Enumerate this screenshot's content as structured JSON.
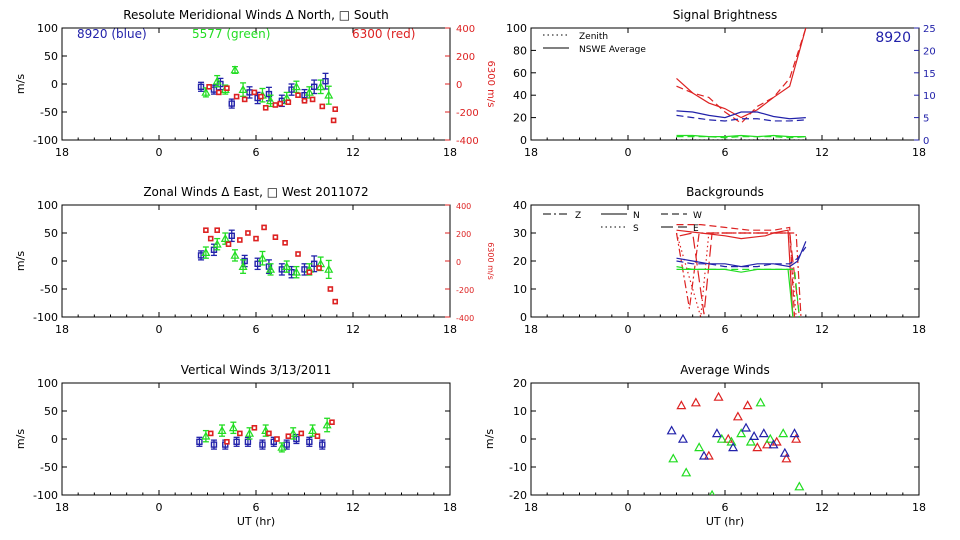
{
  "chart_data": [
    {
      "type": "scatter",
      "title": "Resolute Meridional Winds Δ North, □ South",
      "xlabel": "",
      "ylabel": "m/s",
      "y2label": "6300 m/s",
      "xlim": [
        18,
        42
      ],
      "xtick_labels": [
        "18",
        "0",
        "6",
        "12",
        "18"
      ],
      "ylim": [
        -100,
        100
      ],
      "yticks": [
        -100,
        -50,
        0,
        50,
        100
      ],
      "y2lim": [
        -400,
        400
      ],
      "y2ticks": [
        -400,
        -200,
        0,
        200,
        400
      ],
      "annotations": [
        {
          "text": "8920 (blue)",
          "color": "#2222aa"
        },
        {
          "text": "5577 (green)",
          "color": "#22dd22"
        },
        {
          "text": "6300 (red)",
          "color": "#dd2222"
        }
      ],
      "series": [
        {
          "color": "#2222aa",
          "marker": "square-err",
          "x": [
            26.6,
            27.4,
            27.8,
            28.5,
            29.6,
            30.1,
            30.8,
            31.6,
            32.2,
            33.0,
            33.6,
            34.3
          ],
          "y": [
            -5,
            -10,
            0,
            -35,
            -15,
            -25,
            -18,
            -30,
            -10,
            -20,
            -5,
            5
          ],
          "err": [
            8,
            8,
            10,
            8,
            10,
            10,
            12,
            10,
            10,
            10,
            12,
            14
          ]
        },
        {
          "color": "#22dd22",
          "marker": "triangle-err",
          "x": [
            26.9,
            27.6,
            28.1,
            28.7,
            29.2,
            30.4,
            30.9,
            31.9,
            32.5,
            33.3,
            34.0,
            34.5
          ],
          "y": [
            -15,
            5,
            -10,
            25,
            -10,
            -20,
            -30,
            -25,
            -5,
            -15,
            -5,
            -20
          ],
          "err": [
            8,
            10,
            8,
            6,
            12,
            12,
            10,
            10,
            10,
            10,
            12,
            16
          ]
        },
        {
          "color": "#dd2222",
          "marker": "square-red",
          "axis": "y2",
          "x": [
            27.1,
            27.7,
            28.2,
            28.8,
            29.3,
            29.9,
            30.3,
            30.6,
            31.2,
            31.5,
            32.0,
            32.6,
            33.0,
            33.5,
            34.1,
            34.8,
            34.9
          ],
          "y": [
            -20,
            -60,
            -30,
            -90,
            -110,
            -60,
            -90,
            -170,
            -150,
            -140,
            -130,
            -80,
            -120,
            -110,
            -160,
            -260,
            -180
          ]
        }
      ]
    },
    {
      "type": "line",
      "title": "Signal Brightness",
      "xlim": [
        18,
        42
      ],
      "xtick_labels": [
        "18",
        "0",
        "6",
        "12",
        "18"
      ],
      "ylim": [
        0,
        100
      ],
      "yticks": [
        0,
        20,
        40,
        60,
        80,
        100
      ],
      "y2lim": [
        0,
        25
      ],
      "y2ticks": [
        0,
        5,
        10,
        15,
        20,
        25
      ],
      "legend": {
        "placement": "top-left",
        "entries": [
          "Zenith",
          "NSWE Average"
        ]
      },
      "annotation": "8920",
      "series": [
        {
          "name": "Zenith",
          "color": "#000000",
          "style": "dotted",
          "x": [
            27,
            28,
            29,
            30,
            31,
            32,
            33,
            34,
            35
          ],
          "y": [
            0,
            0,
            0,
            0,
            0,
            0,
            0,
            0,
            0
          ]
        },
        {
          "color": "#dd2222",
          "style": "solid",
          "x": [
            27,
            28,
            29,
            30,
            31,
            32,
            33,
            34,
            35
          ],
          "y": [
            55,
            42,
            33,
            28,
            20,
            27,
            38,
            48,
            100
          ]
        },
        {
          "color": "#dd2222",
          "style": "dashed",
          "x": [
            27,
            28,
            29,
            30,
            31,
            32,
            33,
            34,
            35
          ],
          "y": [
            48,
            42,
            38,
            25,
            15,
            30,
            38,
            55,
            100
          ]
        },
        {
          "color": "#2222aa",
          "style": "solid",
          "x": [
            27,
            28,
            29,
            30,
            31,
            32,
            33,
            34,
            35
          ],
          "y": [
            26,
            25,
            22,
            20,
            25,
            25,
            21,
            19,
            20
          ]
        },
        {
          "color": "#2222aa",
          "style": "dashed",
          "x": [
            27,
            28,
            29,
            30,
            31,
            32,
            33,
            34,
            35
          ],
          "y": [
            22,
            20,
            18,
            17,
            19,
            19,
            17,
            17,
            18
          ]
        },
        {
          "color": "#22dd22",
          "style": "solid",
          "x": [
            27,
            28,
            29,
            30,
            31,
            32,
            33,
            34,
            35
          ],
          "y": [
            4,
            4,
            3,
            3,
            4,
            3,
            4,
            3,
            3
          ]
        },
        {
          "color": "#22dd22",
          "style": "dashed",
          "x": [
            27,
            28,
            29,
            30,
            31,
            32,
            33,
            34,
            35
          ],
          "y": [
            3,
            3,
            3,
            2,
            3,
            3,
            3,
            2,
            3
          ]
        }
      ]
    },
    {
      "type": "scatter",
      "title": "Zonal Winds Δ East, □ West 2011072",
      "xlabel": "",
      "ylabel": "m/s",
      "y2label": "6300 m/s",
      "xlim": [
        18,
        42
      ],
      "xtick_labels": [
        "18",
        "0",
        "6",
        "12",
        "18"
      ],
      "ylim": [
        -100,
        100
      ],
      "yticks": [
        -100,
        -50,
        0,
        50,
        100
      ],
      "y2lim": [
        -400,
        400
      ],
      "y2ticks": [
        -400,
        -200,
        0,
        200,
        400
      ],
      "series": [
        {
          "color": "#2222aa",
          "marker": "square-err",
          "x": [
            26.6,
            27.4,
            28.5,
            29.3,
            30.1,
            30.8,
            31.6,
            32.2,
            33.0,
            33.6
          ],
          "y": [
            10,
            20,
            45,
            0,
            -5,
            -10,
            -15,
            -20,
            -15,
            -5
          ],
          "err": [
            8,
            10,
            10,
            10,
            10,
            12,
            10,
            10,
            10,
            14
          ]
        },
        {
          "color": "#22dd22",
          "marker": "triangle-err",
          "x": [
            26.9,
            27.6,
            28.1,
            28.7,
            29.2,
            30.4,
            30.9,
            31.9,
            32.5,
            33.3,
            34.0,
            34.5
          ],
          "y": [
            15,
            30,
            40,
            10,
            -10,
            5,
            -15,
            -10,
            -20,
            -15,
            -5,
            -15
          ],
          "err": [
            10,
            10,
            10,
            10,
            12,
            12,
            10,
            10,
            10,
            10,
            12,
            16
          ]
        },
        {
          "color": "#dd2222",
          "marker": "square-red",
          "axis": "y2",
          "x": [
            26.9,
            27.2,
            27.6,
            28.3,
            29.0,
            29.5,
            30.0,
            30.5,
            31.2,
            31.8,
            32.6,
            33.3,
            33.9,
            34.6,
            34.9
          ],
          "y": [
            220,
            160,
            220,
            120,
            150,
            200,
            160,
            240,
            170,
            130,
            50,
            -80,
            -50,
            -200,
            -290
          ]
        }
      ]
    },
    {
      "type": "scatter",
      "title": "Backgrounds",
      "xlim": [
        18,
        42
      ],
      "xtick_labels": [
        "18",
        "0",
        "6",
        "12",
        "18"
      ],
      "ylim": [
        0,
        40
      ],
      "yticks": [
        0,
        10,
        20,
        30,
        40
      ],
      "legend": {
        "placement": "top-left",
        "entries": [
          "Z",
          "N",
          "W",
          "S",
          "E"
        ]
      },
      "series": [
        {
          "name": "Z",
          "color": "#dd2222",
          "style": "dashdot",
          "x": [
            27.0,
            27.8,
            28.4,
            29.0,
            34.0,
            34.4,
            34.7
          ],
          "y": [
            30,
            3,
            30,
            30,
            30,
            30,
            0
          ]
        },
        {
          "name": "N",
          "color": "#dd2222",
          "style": "solid",
          "x": [
            27.0,
            28.5,
            30.0,
            31.0,
            32.5,
            33.0,
            33.9,
            34.2
          ],
          "y": [
            31,
            30,
            29,
            28,
            29,
            30,
            31,
            0
          ]
        },
        {
          "name": "W",
          "color": "#dd2222",
          "style": "dashed",
          "x": [
            27.0,
            28.5,
            30.0,
            31.5,
            33.0,
            34.0,
            34.3
          ],
          "y": [
            33,
            33,
            32,
            31,
            31,
            32,
            0
          ]
        },
        {
          "name": "S",
          "color": "#dd2222",
          "style": "dotted",
          "x": [
            27.0,
            28.5,
            29.0,
            34.0,
            34.4
          ],
          "y": [
            30,
            0,
            30,
            30,
            0
          ]
        },
        {
          "name": "E",
          "color": "#dd2222",
          "style": "longdash",
          "x": [
            27.2,
            28.0,
            28.7,
            29.2,
            34.0,
            34.6
          ],
          "y": [
            29,
            30,
            1,
            30,
            30,
            0
          ]
        },
        {
          "color": "#2222aa",
          "style": "solid",
          "x": [
            27,
            28,
            29,
            30,
            31,
            32,
            33,
            34,
            34.5,
            35
          ],
          "y": [
            21,
            20,
            19,
            19,
            18,
            19,
            19,
            18,
            20,
            27
          ]
        },
        {
          "color": "#2222aa",
          "style": "dashed",
          "x": [
            27,
            28,
            29,
            30,
            31,
            32,
            33,
            34,
            34.5,
            35
          ],
          "y": [
            20,
            19,
            19,
            18,
            18,
            18,
            19,
            19,
            21,
            25
          ]
        },
        {
          "color": "#22dd22",
          "style": "solid",
          "x": [
            27,
            28,
            29,
            30,
            31,
            32,
            33,
            33.9,
            34.2
          ],
          "y": [
            17,
            17,
            17,
            17,
            16,
            17,
            17,
            17,
            0
          ]
        },
        {
          "color": "#22dd22",
          "style": "dashed",
          "x": [
            27,
            28,
            29,
            30,
            31,
            32,
            33,
            34.3,
            34.6
          ],
          "y": [
            18,
            17,
            17,
            17,
            17,
            17,
            17,
            17,
            0
          ]
        }
      ]
    },
    {
      "type": "scatter",
      "title": "Vertical Winds 3/13/2011",
      "xlabel": "UT (hr)",
      "ylabel": "m/s",
      "xlim": [
        18,
        42
      ],
      "xtick_labels": [
        "18",
        "0",
        "6",
        "12",
        "18"
      ],
      "ylim": [
        -100,
        100
      ],
      "yticks": [
        -100,
        -50,
        0,
        50,
        100
      ],
      "series": [
        {
          "color": "#2222aa",
          "marker": "square-err",
          "x": [
            26.5,
            27.4,
            28.1,
            28.8,
            29.5,
            30.4,
            31.1,
            31.9,
            32.5,
            33.3,
            34.1
          ],
          "y": [
            -5,
            -10,
            -10,
            -5,
            -5,
            -10,
            -5,
            -10,
            0,
            -5,
            -10
          ],
          "err": [
            8,
            8,
            8,
            8,
            8,
            8,
            8,
            8,
            8,
            8,
            8
          ]
        },
        {
          "color": "#22dd22",
          "marker": "triangle-err",
          "x": [
            26.9,
            27.9,
            28.6,
            29.6,
            30.6,
            31.6,
            32.3,
            33.5,
            34.4
          ],
          "y": [
            5,
            15,
            20,
            10,
            15,
            -15,
            10,
            15,
            25
          ],
          "err": [
            10,
            10,
            10,
            10,
            10,
            8,
            10,
            10,
            12
          ]
        },
        {
          "color": "#dd2222",
          "marker": "square-red",
          "x": [
            27.2,
            28.2,
            29.0,
            29.9,
            30.8,
            31.3,
            32.0,
            32.8,
            33.8,
            34.7
          ],
          "y": [
            10,
            -5,
            10,
            20,
            10,
            0,
            5,
            10,
            5,
            30
          ]
        }
      ]
    },
    {
      "type": "scatter",
      "title": "Average Winds",
      "xlabel": "UT (hr)",
      "ylabel": "m/s",
      "xlim": [
        18,
        42
      ],
      "xtick_labels": [
        "18",
        "0",
        "6",
        "12",
        "18"
      ],
      "ylim": [
        -20,
        20
      ],
      "yticks": [
        -20,
        -10,
        0,
        10,
        20
      ],
      "series": [
        {
          "color": "#dd2222",
          "marker": "triangle",
          "x": [
            27.3,
            28.2,
            29.0,
            29.6,
            30.2,
            30.8,
            31.4,
            32.0,
            32.6,
            33.2,
            33.8,
            34.4
          ],
          "y": [
            12,
            13,
            -6,
            15,
            0,
            8,
            12,
            -3,
            -2,
            -1,
            -7,
            0
          ]
        },
        {
          "color": "#22dd22",
          "marker": "triangle",
          "x": [
            26.8,
            27.6,
            28.4,
            29.2,
            29.8,
            30.4,
            31.0,
            31.6,
            32.2,
            32.8,
            33.6,
            34.6
          ],
          "y": [
            -7,
            -12,
            -3,
            -20,
            0,
            -1,
            2,
            -1,
            13,
            0,
            2,
            -17
          ]
        },
        {
          "color": "#2222aa",
          "marker": "triangle",
          "x": [
            26.7,
            27.4,
            28.7,
            29.5,
            30.5,
            31.3,
            31.8,
            32.4,
            33.0,
            33.7,
            34.3
          ],
          "y": [
            3,
            0,
            -6,
            2,
            -3,
            4,
            1,
            2,
            -2,
            -5,
            2
          ]
        }
      ]
    }
  ]
}
